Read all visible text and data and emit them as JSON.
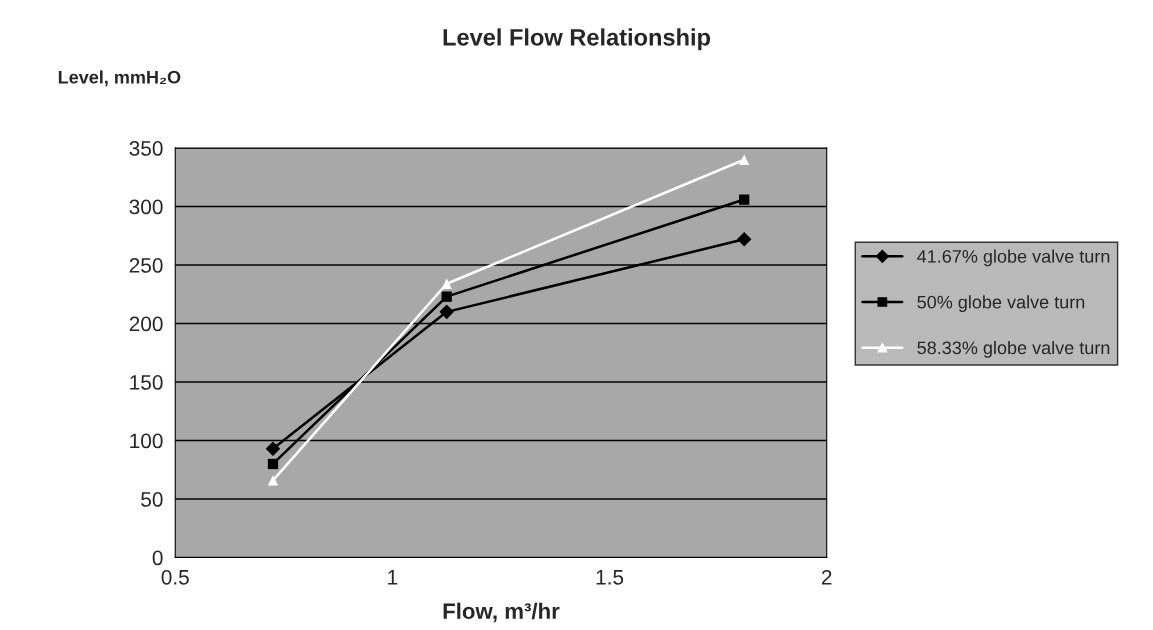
{
  "chart_data": {
    "type": "line",
    "title": "Level Flow Relationship",
    "xlabel": "Flow, m³/hr",
    "ylabel": "Level, mmH₂O",
    "x": [
      0.725,
      1.125,
      1.81
    ],
    "series": [
      {
        "name": "41.67% globe valve turn",
        "color": "#000000",
        "marker": "diamond",
        "values": [
          93,
          210,
          272
        ]
      },
      {
        "name": "50% globe valve turn",
        "color": "#000000",
        "marker": "square",
        "values": [
          80,
          223,
          306
        ]
      },
      {
        "name": "58.33% globe valve turn",
        "color": "#ffffff",
        "marker": "triangle",
        "values": [
          66,
          234,
          340
        ]
      }
    ],
    "xlim": [
      0.5,
      2
    ],
    "xticks": [
      0.5,
      1,
      1.5,
      2
    ],
    "ylim": [
      0,
      350
    ],
    "yticks": [
      0,
      50,
      100,
      150,
      200,
      250,
      300,
      350
    ],
    "grid": "y",
    "legend": "right"
  }
}
